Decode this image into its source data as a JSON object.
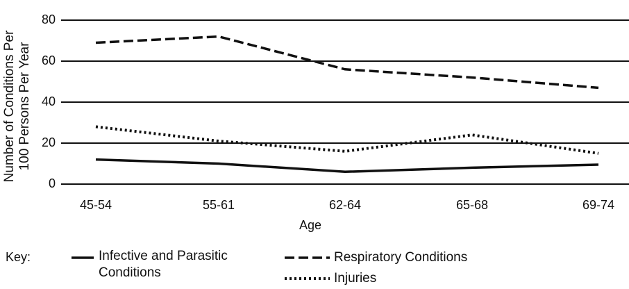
{
  "chart_data": {
    "type": "line",
    "y_label": "Number of Conditions Per 100 Persons Per Year",
    "x_label": "Age",
    "legend_title": "Key:",
    "categories": [
      "45-54",
      "55-61",
      "62-64",
      "65-68",
      "69-74"
    ],
    "series": [
      {
        "name": "Infective and Parasitic Conditions",
        "color": "#111111",
        "style": "solid",
        "values": [
          12,
          10,
          6,
          8,
          9.5
        ]
      },
      {
        "name": "Respiratory Conditions",
        "color": "#111111",
        "style": "dashed",
        "values": [
          69,
          72,
          56,
          52,
          47
        ]
      },
      {
        "name": "Injuries",
        "color": "#111111",
        "style": "dotted",
        "values": [
          28,
          21,
          16,
          24,
          15
        ]
      }
    ],
    "ylim": [
      0,
      80
    ],
    "yticks": [
      0,
      20,
      40,
      60,
      80
    ],
    "grid": true
  }
}
